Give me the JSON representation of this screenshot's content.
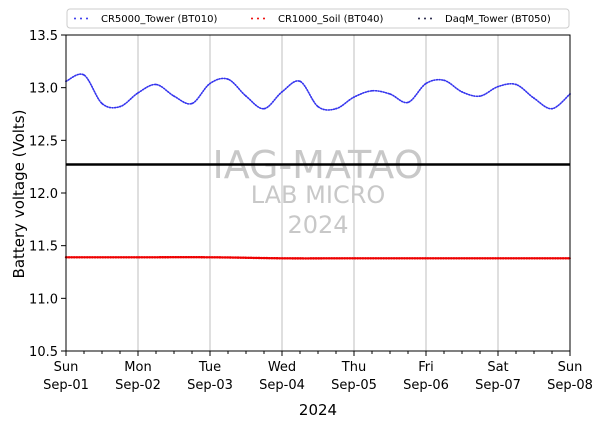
{
  "chart_data": {
    "type": "line",
    "xlabel": "2024",
    "ylabel": "Battery voltage (Volts)",
    "ylim": [
      10.5,
      13.5
    ],
    "xlim": [
      "2024-09-01",
      "2024-09-08"
    ],
    "yticks": [
      "10.5",
      "11.0",
      "11.5",
      "12.0",
      "12.5",
      "13.0",
      "13.5"
    ],
    "xticks": [
      {
        "day": "Sun",
        "date": "Sep-01"
      },
      {
        "day": "Mon",
        "date": "Sep-02"
      },
      {
        "day": "Tue",
        "date": "Sep-03"
      },
      {
        "day": "Wed",
        "date": "Sep-04"
      },
      {
        "day": "Thu",
        "date": "Sep-05"
      },
      {
        "day": "Fri",
        "date": "Sep-06"
      },
      {
        "day": "Sat",
        "date": "Sep-07"
      },
      {
        "day": "Sun",
        "date": "Sep-08"
      }
    ],
    "grid": "vertical at daily ticks",
    "legend_position": "top, above plot",
    "threshold_line": {
      "y": 12.27,
      "color": "#000000"
    },
    "series": [
      {
        "name": "CR5000_Tower (BT010)",
        "color": "#3333ee",
        "marker": "dotted",
        "x": [
          "2024-09-01 00:00",
          "2024-09-01 06:00",
          "2024-09-01 12:00",
          "2024-09-01 18:00",
          "2024-09-02 00:00",
          "2024-09-02 06:00",
          "2024-09-02 12:00",
          "2024-09-02 18:00",
          "2024-09-03 00:00",
          "2024-09-03 06:00",
          "2024-09-03 12:00",
          "2024-09-03 18:00",
          "2024-09-04 00:00",
          "2024-09-04 06:00",
          "2024-09-04 12:00",
          "2024-09-04 18:00",
          "2024-09-05 00:00",
          "2024-09-05 06:00",
          "2024-09-05 12:00",
          "2024-09-05 18:00",
          "2024-09-06 00:00",
          "2024-09-06 06:00",
          "2024-09-06 12:00",
          "2024-09-06 18:00",
          "2024-09-07 00:00",
          "2024-09-07 06:00",
          "2024-09-07 12:00",
          "2024-09-07 18:00",
          "2024-09-08 00:00"
        ],
        "y": [
          13.06,
          13.12,
          12.85,
          12.82,
          12.95,
          13.03,
          12.92,
          12.85,
          13.04,
          13.08,
          12.92,
          12.8,
          12.96,
          13.06,
          12.82,
          12.8,
          12.91,
          12.97,
          12.94,
          12.86,
          13.04,
          13.07,
          12.96,
          12.92,
          13.01,
          13.03,
          12.9,
          12.8,
          12.94
        ]
      },
      {
        "name": "CR1000_Soil (BT040)",
        "color": "#ee0000",
        "marker": "dotted",
        "x": [
          "2024-09-01 00:00",
          "2024-09-02 00:00",
          "2024-09-03 00:00",
          "2024-09-04 00:00",
          "2024-09-05 00:00",
          "2024-09-06 00:00",
          "2024-09-07 00:00",
          "2024-09-08 00:00"
        ],
        "y": [
          11.39,
          11.39,
          11.39,
          11.38,
          11.38,
          11.38,
          11.38,
          11.38
        ]
      },
      {
        "name": "DaqM_Tower (BT050)",
        "color": "#222244",
        "marker": "dotted",
        "x": [],
        "y": []
      }
    ]
  },
  "watermark": {
    "line1": "IAG-MATAO",
    "line2": "LAB MICRO",
    "line3": "2024"
  }
}
